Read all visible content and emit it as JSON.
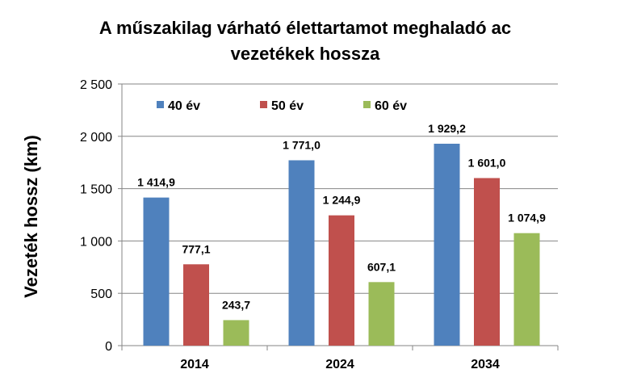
{
  "chart_data": {
    "type": "bar",
    "title_lines": [
      "A műszakilag várható élettartamot meghaladó ac",
      "vezetékek hossza"
    ],
    "ylabel": "Vezeték hossz (km)",
    "xlabel": "",
    "categories": [
      "2014",
      "2024",
      "2034"
    ],
    "series": [
      {
        "name": "40 év",
        "color": "#4F81BD",
        "values": [
          1414.9,
          1771.0,
          1929.2
        ],
        "labels": [
          "1 414,9",
          "1 771,0",
          "1 929,2"
        ]
      },
      {
        "name": "50 év",
        "color": "#C0504D",
        "values": [
          777.1,
          1244.9,
          1601.0
        ],
        "labels": [
          "777,1",
          "1 244,9",
          "1 601,0"
        ]
      },
      {
        "name": "60 év",
        "color": "#9BBB59",
        "values": [
          243.7,
          607.1,
          1074.9
        ],
        "labels": [
          "243,7",
          "607,1",
          "1 074,9"
        ]
      }
    ],
    "ylim": [
      0,
      2500
    ],
    "yticks": [
      0,
      500,
      1000,
      1500,
      2000,
      2500
    ],
    "ytick_labels": [
      "0",
      "500",
      "1 000",
      "1 500",
      "2 000",
      "2 500"
    ],
    "grid": true,
    "legend_position": "top-left inside plot"
  }
}
